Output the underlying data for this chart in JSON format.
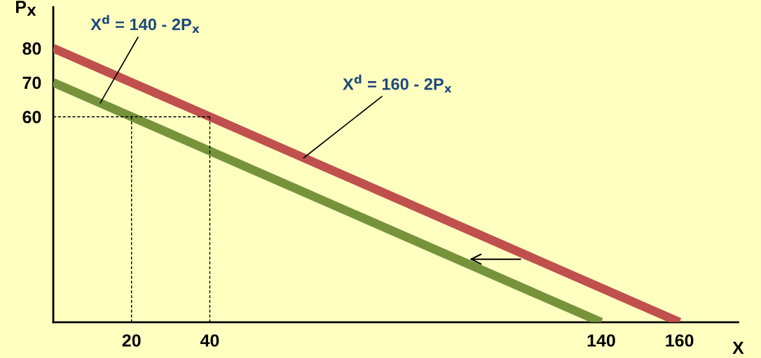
{
  "chart_data": {
    "type": "line",
    "xlabel": "X",
    "ylabel": "P$_{X}$",
    "xlim": [
      0,
      175
    ],
    "ylim": [
      0,
      92
    ],
    "xticks": [
      20,
      40,
      140,
      160
    ],
    "yticks": [
      60,
      70,
      80
    ],
    "grid": false,
    "legend": false,
    "line_style": "solid",
    "marker": "none",
    "series": [
      {
        "x": [
          0,
          160
        ],
        "values": [
          80,
          0
        ],
        "color": "#c0504d"
      },
      {
        "x": [
          0,
          140
        ],
        "values": [
          70,
          0
        ],
        "color": "#76933c"
      },
      {
        "x": [
          0,
          40
        ],
        "values": [
          60,
          60
        ],
        "color": "#000000",
        "line_style": "dashed"
      },
      {
        "x": [
          20,
          20
        ],
        "values": [
          0,
          60
        ],
        "color": "#000000",
        "line_style": "dashed"
      },
      {
        "x": [
          40,
          40
        ],
        "values": [
          0,
          60
        ],
        "color": "#000000",
        "line_style": "dashed"
      }
    ],
    "annotations": [
      {
        "text": "X$^{d}$ = 140 - 2P$_{x}$",
        "x": 12,
        "y": 64
      },
      {
        "text": "X$^{d}$ = 160 - 2P$_{x}$",
        "x": 64,
        "y": 48
      }
    ]
  }
}
